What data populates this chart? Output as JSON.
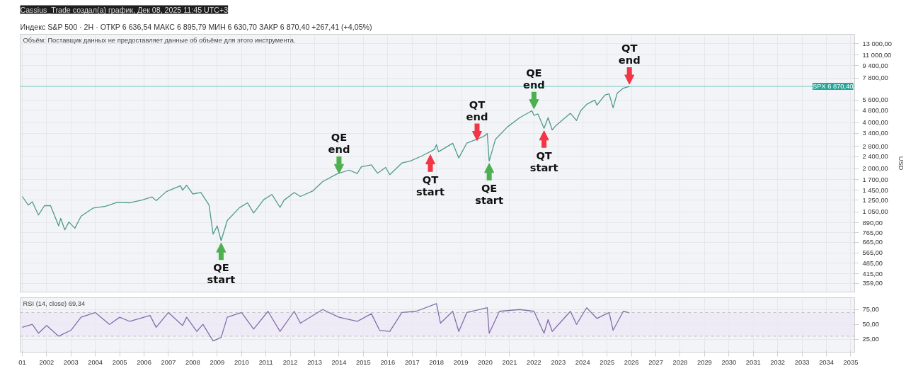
{
  "chart_data": [
    {
      "type": "line",
      "title": "Cassius_Trade создал(а) график, Дек 08, 2025 11:45 UTC+3",
      "subtitle": "Индекс S&P 500 · 2Н · ОТКР 6 636,54 МАКС 6 895,79 МИН 6 630,70 ЗАКР 6 870,40 +267,41 (+4,05%)",
      "ylabel": "USD",
      "annotations": [
        "Объём: Поставщик данных не предоставляет данные об объёме для этого инструмента.",
        {
          "text": "QE\nstart",
          "x": "2009-03",
          "y": 680
        },
        {
          "text": "QE\nend",
          "x": "2014-01",
          "y": 1800
        },
        {
          "text": "QT\nstart",
          "x": "2017-10",
          "y": 2550
        },
        {
          "text": "QT\nend",
          "x": "2019-09",
          "y": 2950
        },
        {
          "text": "QE\nstart",
          "x": "2020-03",
          "y": 2240
        },
        {
          "text": "QE\nend",
          "x": "2022-01",
          "y": 4750
        },
        {
          "text": "QT\nstart",
          "x": "2022-06",
          "y": 3650
        },
        {
          "text": "QT\nend",
          "x": "2025-12",
          "y": 6870.4
        }
      ],
      "x": [
        "2001-01",
        "2001-04",
        "2001-06",
        "2001-09",
        "2001-12",
        "2002-03",
        "2002-07",
        "2002-08",
        "2002-10",
        "2002-12",
        "2003-03",
        "2003-06",
        "2003-12",
        "2004-06",
        "2004-12",
        "2005-06",
        "2005-12",
        "2006-05",
        "2006-07",
        "2006-12",
        "2007-07",
        "2007-08",
        "2007-10",
        "2008-01",
        "2008-05",
        "2008-09",
        "2008-11",
        "2009-01",
        "2009-03",
        "2009-06",
        "2009-12",
        "2010-04",
        "2010-07",
        "2010-12",
        "2011-04",
        "2011-08",
        "2011-10",
        "2012-03",
        "2012-06",
        "2012-12",
        "2013-05",
        "2013-12",
        "2014-06",
        "2014-10",
        "2014-12",
        "2015-05",
        "2015-08",
        "2015-12",
        "2016-02",
        "2016-08",
        "2016-12",
        "2017-06",
        "2017-12",
        "2018-01",
        "2018-02",
        "2018-09",
        "2018-12",
        "2019-04",
        "2019-12",
        "2020-02",
        "2020-03",
        "2020-06",
        "2020-12",
        "2021-06",
        "2021-12",
        "2022-01",
        "2022-03",
        "2022-06",
        "2022-08",
        "2022-10",
        "2022-12",
        "2023-07",
        "2023-10",
        "2023-12",
        "2024-03",
        "2024-07",
        "2024-08",
        "2024-12",
        "2025-02",
        "2025-04",
        "2025-06",
        "2025-09",
        "2025-12"
      ],
      "series": [
        {
          "color": "#4e9a8f",
          "values": [
            1320,
            1160,
            1220,
            1000,
            1150,
            1150,
            850,
            950,
            800,
            900,
            820,
            980,
            1110,
            1140,
            1210,
            1200,
            1250,
            1310,
            1240,
            1420,
            1550,
            1450,
            1560,
            1370,
            1400,
            1160,
            750,
            850,
            680,
            920,
            1115,
            1200,
            1030,
            1260,
            1360,
            1120,
            1250,
            1400,
            1320,
            1430,
            1650,
            1850,
            1960,
            1860,
            2060,
            2120,
            1870,
            2040,
            1830,
            2180,
            2240,
            2430,
            2670,
            2870,
            2580,
            2930,
            2350,
            2940,
            3230,
            3390,
            2240,
            3100,
            3750,
            4300,
            4770,
            4450,
            4550,
            3670,
            4300,
            3580,
            3840,
            4590,
            4120,
            4770,
            5250,
            5600,
            5190,
            6050,
            6140,
            4980,
            6200,
            6690,
            6870.4
          ]
        }
      ],
      "log": true,
      "xlim": [
        "2000-12",
        "2035-03"
      ],
      "ylim": [
        315,
        15000
      ],
      "xticks": [
        {
          "value": "2001",
          "label": null
        },
        {
          "value": "2002",
          "label": null
        },
        {
          "value": "2003",
          "label": null
        },
        {
          "value": "2004",
          "label": null
        },
        {
          "value": "2005",
          "label": null
        },
        {
          "value": "2006",
          "label": null
        },
        {
          "value": "2007",
          "label": null
        },
        {
          "value": "2008",
          "label": null
        },
        {
          "value": "2009",
          "label": null
        },
        {
          "value": "2010",
          "label": null
        },
        {
          "value": "2011",
          "label": null
        },
        {
          "value": "2012",
          "label": null
        },
        {
          "value": "2013",
          "label": null
        },
        {
          "value": "2014",
          "label": null
        },
        {
          "value": "2015",
          "label": null
        },
        {
          "value": "2016",
          "label": null
        },
        {
          "value": "2017",
          "label": null
        },
        {
          "value": "2018",
          "label": null
        },
        {
          "value": "2019",
          "label": null
        },
        {
          "value": "2020",
          "label": null
        },
        {
          "value": "2021",
          "label": null
        },
        {
          "value": "2022",
          "label": null
        },
        {
          "value": "2023",
          "label": null
        },
        {
          "value": "2024",
          "label": null
        },
        {
          "value": "2025",
          "label": null
        },
        {
          "value": "2026",
          "label": null
        },
        {
          "value": "2027",
          "label": null
        },
        {
          "value": "2028",
          "label": null
        },
        {
          "value": "2029",
          "label": null
        },
        {
          "value": "2030",
          "label": null
        },
        {
          "value": "2031",
          "label": null
        },
        {
          "value": "2032",
          "label": null
        },
        {
          "value": "2033",
          "label": null
        },
        {
          "value": "2034",
          "label": null
        },
        {
          "value": "2035",
          "label": null
        }
      ],
      "yticks": [
        {
          "value": 359,
          "label": "359,00"
        },
        {
          "value": 415,
          "label": "415,00"
        },
        {
          "value": 485,
          "label": "485,00"
        },
        {
          "value": 565,
          "label": "565,00"
        },
        {
          "value": 665,
          "label": "665,00"
        },
        {
          "value": 765,
          "label": "765,00"
        },
        {
          "value": 890,
          "label": "890,00"
        },
        {
          "value": 1050,
          "label": "1 050,00"
        },
        {
          "value": 1250,
          "label": "1 250,00"
        },
        {
          "value": 1450,
          "label": "1 450,00"
        },
        {
          "value": 1700,
          "label": "1 700,00"
        },
        {
          "value": 2000,
          "label": "2 000,00"
        },
        {
          "value": 2400,
          "label": "2 400,00"
        },
        {
          "value": 2800,
          "label": "2 800,00"
        },
        {
          "value": 3400,
          "label": "3 400,00"
        },
        {
          "value": 4000,
          "label": "4 000,00"
        },
        {
          "value": 4800,
          "label": "4 800,00"
        },
        {
          "value": 5600,
          "label": "5 600,00"
        },
        {
          "value": 7800,
          "label": "7 800,00"
        },
        {
          "value": 9400,
          "label": "9 400,00"
        },
        {
          "value": 11000,
          "label": "11 000,00"
        },
        {
          "value": 13000,
          "label": "13 000,00"
        }
      ],
      "ref_lines": [
        {
          "axis": "y",
          "value": 6870.4,
          "label": "SPX 6 870,40",
          "color": "#26a69a"
        }
      ],
      "grid": true,
      "tick_labels": "y"
    },
    {
      "type": "line",
      "title": "RSI (14, close) 69,34",
      "x": [
        "2001-01",
        "2001-06",
        "2001-09",
        "2002-01",
        "2002-07",
        "2003-01",
        "2003-06",
        "2004-01",
        "2004-08",
        "2005-01",
        "2005-06",
        "2006-04",
        "2006-07",
        "2007-01",
        "2007-08",
        "2007-10",
        "2008-03",
        "2008-06",
        "2008-11",
        "2009-03",
        "2009-06",
        "2010-01",
        "2010-07",
        "2011-02",
        "2011-08",
        "2012-03",
        "2012-06",
        "2013-05",
        "2014-01",
        "2014-10",
        "2015-05",
        "2015-09",
        "2016-02",
        "2016-08",
        "2017-03",
        "2018-01",
        "2018-03",
        "2018-09",
        "2018-12",
        "2019-04",
        "2020-02",
        "2020-03",
        "2020-08",
        "2021-06",
        "2022-01",
        "2022-06",
        "2022-08",
        "2022-10",
        "2023-07",
        "2023-10",
        "2024-03",
        "2024-08",
        "2025-02",
        "2025-04",
        "2025-09",
        "2025-12"
      ],
      "series": [
        {
          "color": "#7e6fa8",
          "values": [
            45,
            50,
            35,
            48,
            30,
            40,
            62,
            70,
            50,
            62,
            55,
            65,
            45,
            70,
            48,
            62,
            38,
            50,
            22,
            28,
            62,
            70,
            42,
            72,
            38,
            72,
            52,
            75,
            62,
            55,
            68,
            40,
            38,
            70,
            72,
            85,
            52,
            72,
            38,
            70,
            78,
            35,
            72,
            75,
            72,
            35,
            58,
            38,
            72,
            50,
            78,
            60,
            70,
            40,
            72,
            69.34
          ]
        }
      ],
      "xlim": [
        "2000-12",
        "2035-03"
      ],
      "ylim": [
        3,
        95
      ],
      "xticks": [
        {
          "value": "2001",
          "label": "01"
        },
        {
          "value": "2002",
          "label": "2002"
        },
        {
          "value": "2003",
          "label": "2003"
        },
        {
          "value": "2004",
          "label": "2004"
        },
        {
          "value": "2005",
          "label": "2005"
        },
        {
          "value": "2006",
          "label": "2006"
        },
        {
          "value": "2007",
          "label": "2007"
        },
        {
          "value": "2008",
          "label": "2008"
        },
        {
          "value": "2009",
          "label": "2009"
        },
        {
          "value": "2010",
          "label": "2010"
        },
        {
          "value": "2011",
          "label": "2011"
        },
        {
          "value": "2012",
          "label": "2012"
        },
        {
          "value": "2013",
          "label": "2013"
        },
        {
          "value": "2014",
          "label": "2014"
        },
        {
          "value": "2015",
          "label": "2015"
        },
        {
          "value": "2016",
          "label": "2016"
        },
        {
          "value": "2017",
          "label": "2017"
        },
        {
          "value": "2018",
          "label": "2018"
        },
        {
          "value": "2019",
          "label": "2019"
        },
        {
          "value": "2020",
          "label": "2020"
        },
        {
          "value": "2021",
          "label": "2021"
        },
        {
          "value": "2022",
          "label": "2022"
        },
        {
          "value": "2023",
          "label": "2023"
        },
        {
          "value": "2024",
          "label": "2024"
        },
        {
          "value": "2025",
          "label": "2025"
        },
        {
          "value": "2026",
          "label": "2026"
        },
        {
          "value": "2027",
          "label": "2027"
        },
        {
          "value": "2028",
          "label": "2028"
        },
        {
          "value": "2029",
          "label": "2029"
        },
        {
          "value": "2030",
          "label": "2030"
        },
        {
          "value": "2031",
          "label": "2031"
        },
        {
          "value": "2032",
          "label": "2032"
        },
        {
          "value": "2033",
          "label": "2033"
        },
        {
          "value": "2034",
          "label": "2034"
        },
        {
          "value": "2035",
          "label": "2035"
        }
      ],
      "yticks": [
        {
          "value": 25,
          "label": "25,00"
        },
        {
          "value": 50,
          "label": "50,00"
        },
        {
          "value": 75,
          "label": "75,00"
        }
      ],
      "ref_lines": [
        {
          "axis": "y",
          "value": 70,
          "color": "#9e9e9e",
          "line_style": "dashed"
        },
        {
          "axis": "y",
          "value": 30,
          "color": "#9e9e9e",
          "line_style": "dashed"
        }
      ],
      "bands": [
        {
          "axis": "y",
          "from": 30,
          "to": 70,
          "color": "#ece8f6"
        }
      ],
      "grid": true
    }
  ]
}
